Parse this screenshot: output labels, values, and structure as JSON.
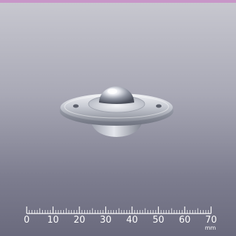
{
  "scene": {
    "subject": "ball-transfer-unit",
    "top_accent_color": "#c896c8",
    "background_top_color": "#c8c8d0",
    "background_bottom_color": "#6a6a7d"
  },
  "ruler": {
    "tick_labels": [
      "0",
      "10",
      "20",
      "30",
      "40",
      "50",
      "60",
      "70"
    ],
    "unit": "mm",
    "color": "#ffffff"
  }
}
